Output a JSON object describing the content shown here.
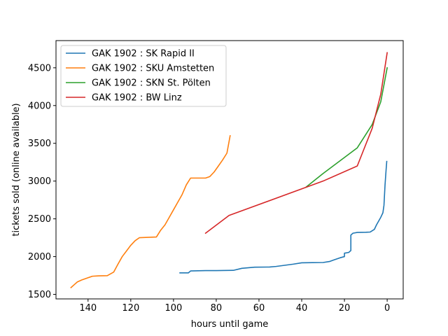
{
  "chart_data": {
    "type": "line",
    "title": "",
    "xlabel": "hours until game",
    "ylabel": "tickets sold (online available)",
    "xlim": [
      155,
      -7.5
    ],
    "ylim": [
      1440,
      4860
    ],
    "xticks": [
      140,
      120,
      100,
      80,
      60,
      40,
      20,
      0
    ],
    "yticks": [
      1500,
      2000,
      2500,
      3000,
      3500,
      4000,
      4500
    ],
    "grid": false,
    "legend_position": "upper-left",
    "series": [
      {
        "name": "GAK 1902 : SK Rapid II",
        "color": "#1f77b4",
        "points": [
          [
            97,
            1785
          ],
          [
            93,
            1785
          ],
          [
            92,
            1810
          ],
          [
            85,
            1815
          ],
          [
            80,
            1815
          ],
          [
            72,
            1818
          ],
          [
            68,
            1845
          ],
          [
            62,
            1860
          ],
          [
            55,
            1862
          ],
          [
            52,
            1870
          ],
          [
            48,
            1885
          ],
          [
            44,
            1900
          ],
          [
            40,
            1918
          ],
          [
            35,
            1920
          ],
          [
            30,
            1922
          ],
          [
            27,
            1935
          ],
          [
            25,
            1955
          ],
          [
            22,
            1985
          ],
          [
            20,
            2000
          ],
          [
            20,
            2045
          ],
          [
            18,
            2055
          ],
          [
            17,
            2080
          ],
          [
            17,
            2285
          ],
          [
            16,
            2310
          ],
          [
            14,
            2320
          ],
          [
            10,
            2322
          ],
          [
            8,
            2325
          ],
          [
            6,
            2360
          ],
          [
            5,
            2420
          ],
          [
            4,
            2470
          ],
          [
            3,
            2520
          ],
          [
            2,
            2580
          ],
          [
            1.5,
            2680
          ],
          [
            1,
            2950
          ],
          [
            0.5,
            3150
          ],
          [
            0.2,
            3260
          ]
        ]
      },
      {
        "name": "GAK 1902 : SKU Amstetten",
        "color": "#ff7f0e",
        "points": [
          [
            148,
            1590
          ],
          [
            146,
            1640
          ],
          [
            145,
            1665
          ],
          [
            143,
            1690
          ],
          [
            140,
            1720
          ],
          [
            138,
            1740
          ],
          [
            135,
            1745
          ],
          [
            131,
            1748
          ],
          [
            128,
            1795
          ],
          [
            126,
            1900
          ],
          [
            124,
            2000
          ],
          [
            122,
            2075
          ],
          [
            120,
            2150
          ],
          [
            118,
            2210
          ],
          [
            116,
            2250
          ],
          [
            112,
            2255
          ],
          [
            108,
            2260
          ],
          [
            106,
            2350
          ],
          [
            104,
            2420
          ],
          [
            102,
            2520
          ],
          [
            100,
            2620
          ],
          [
            98,
            2720
          ],
          [
            96,
            2820
          ],
          [
            94,
            2950
          ],
          [
            92,
            3040
          ],
          [
            88,
            3040
          ],
          [
            85,
            3040
          ],
          [
            83,
            3060
          ],
          [
            81,
            3120
          ],
          [
            79,
            3200
          ],
          [
            77,
            3280
          ],
          [
            75,
            3370
          ],
          [
            73.5,
            3600
          ]
        ]
      },
      {
        "name": "GAK 1902 : SKN St. Pölten",
        "color": "#2ca02c",
        "points": [
          [
            38,
            2920
          ],
          [
            30,
            3100
          ],
          [
            14,
            3440
          ],
          [
            7,
            3750
          ],
          [
            3,
            4050
          ],
          [
            0,
            4500
          ]
        ]
      },
      {
        "name": "GAK 1902 : BW Linz",
        "color": "#d62728",
        "points": [
          [
            85,
            2310
          ],
          [
            74,
            2545
          ],
          [
            30,
            3000
          ],
          [
            14,
            3200
          ],
          [
            7,
            3700
          ],
          [
            3,
            4150
          ],
          [
            0,
            4700
          ]
        ]
      }
    ]
  }
}
